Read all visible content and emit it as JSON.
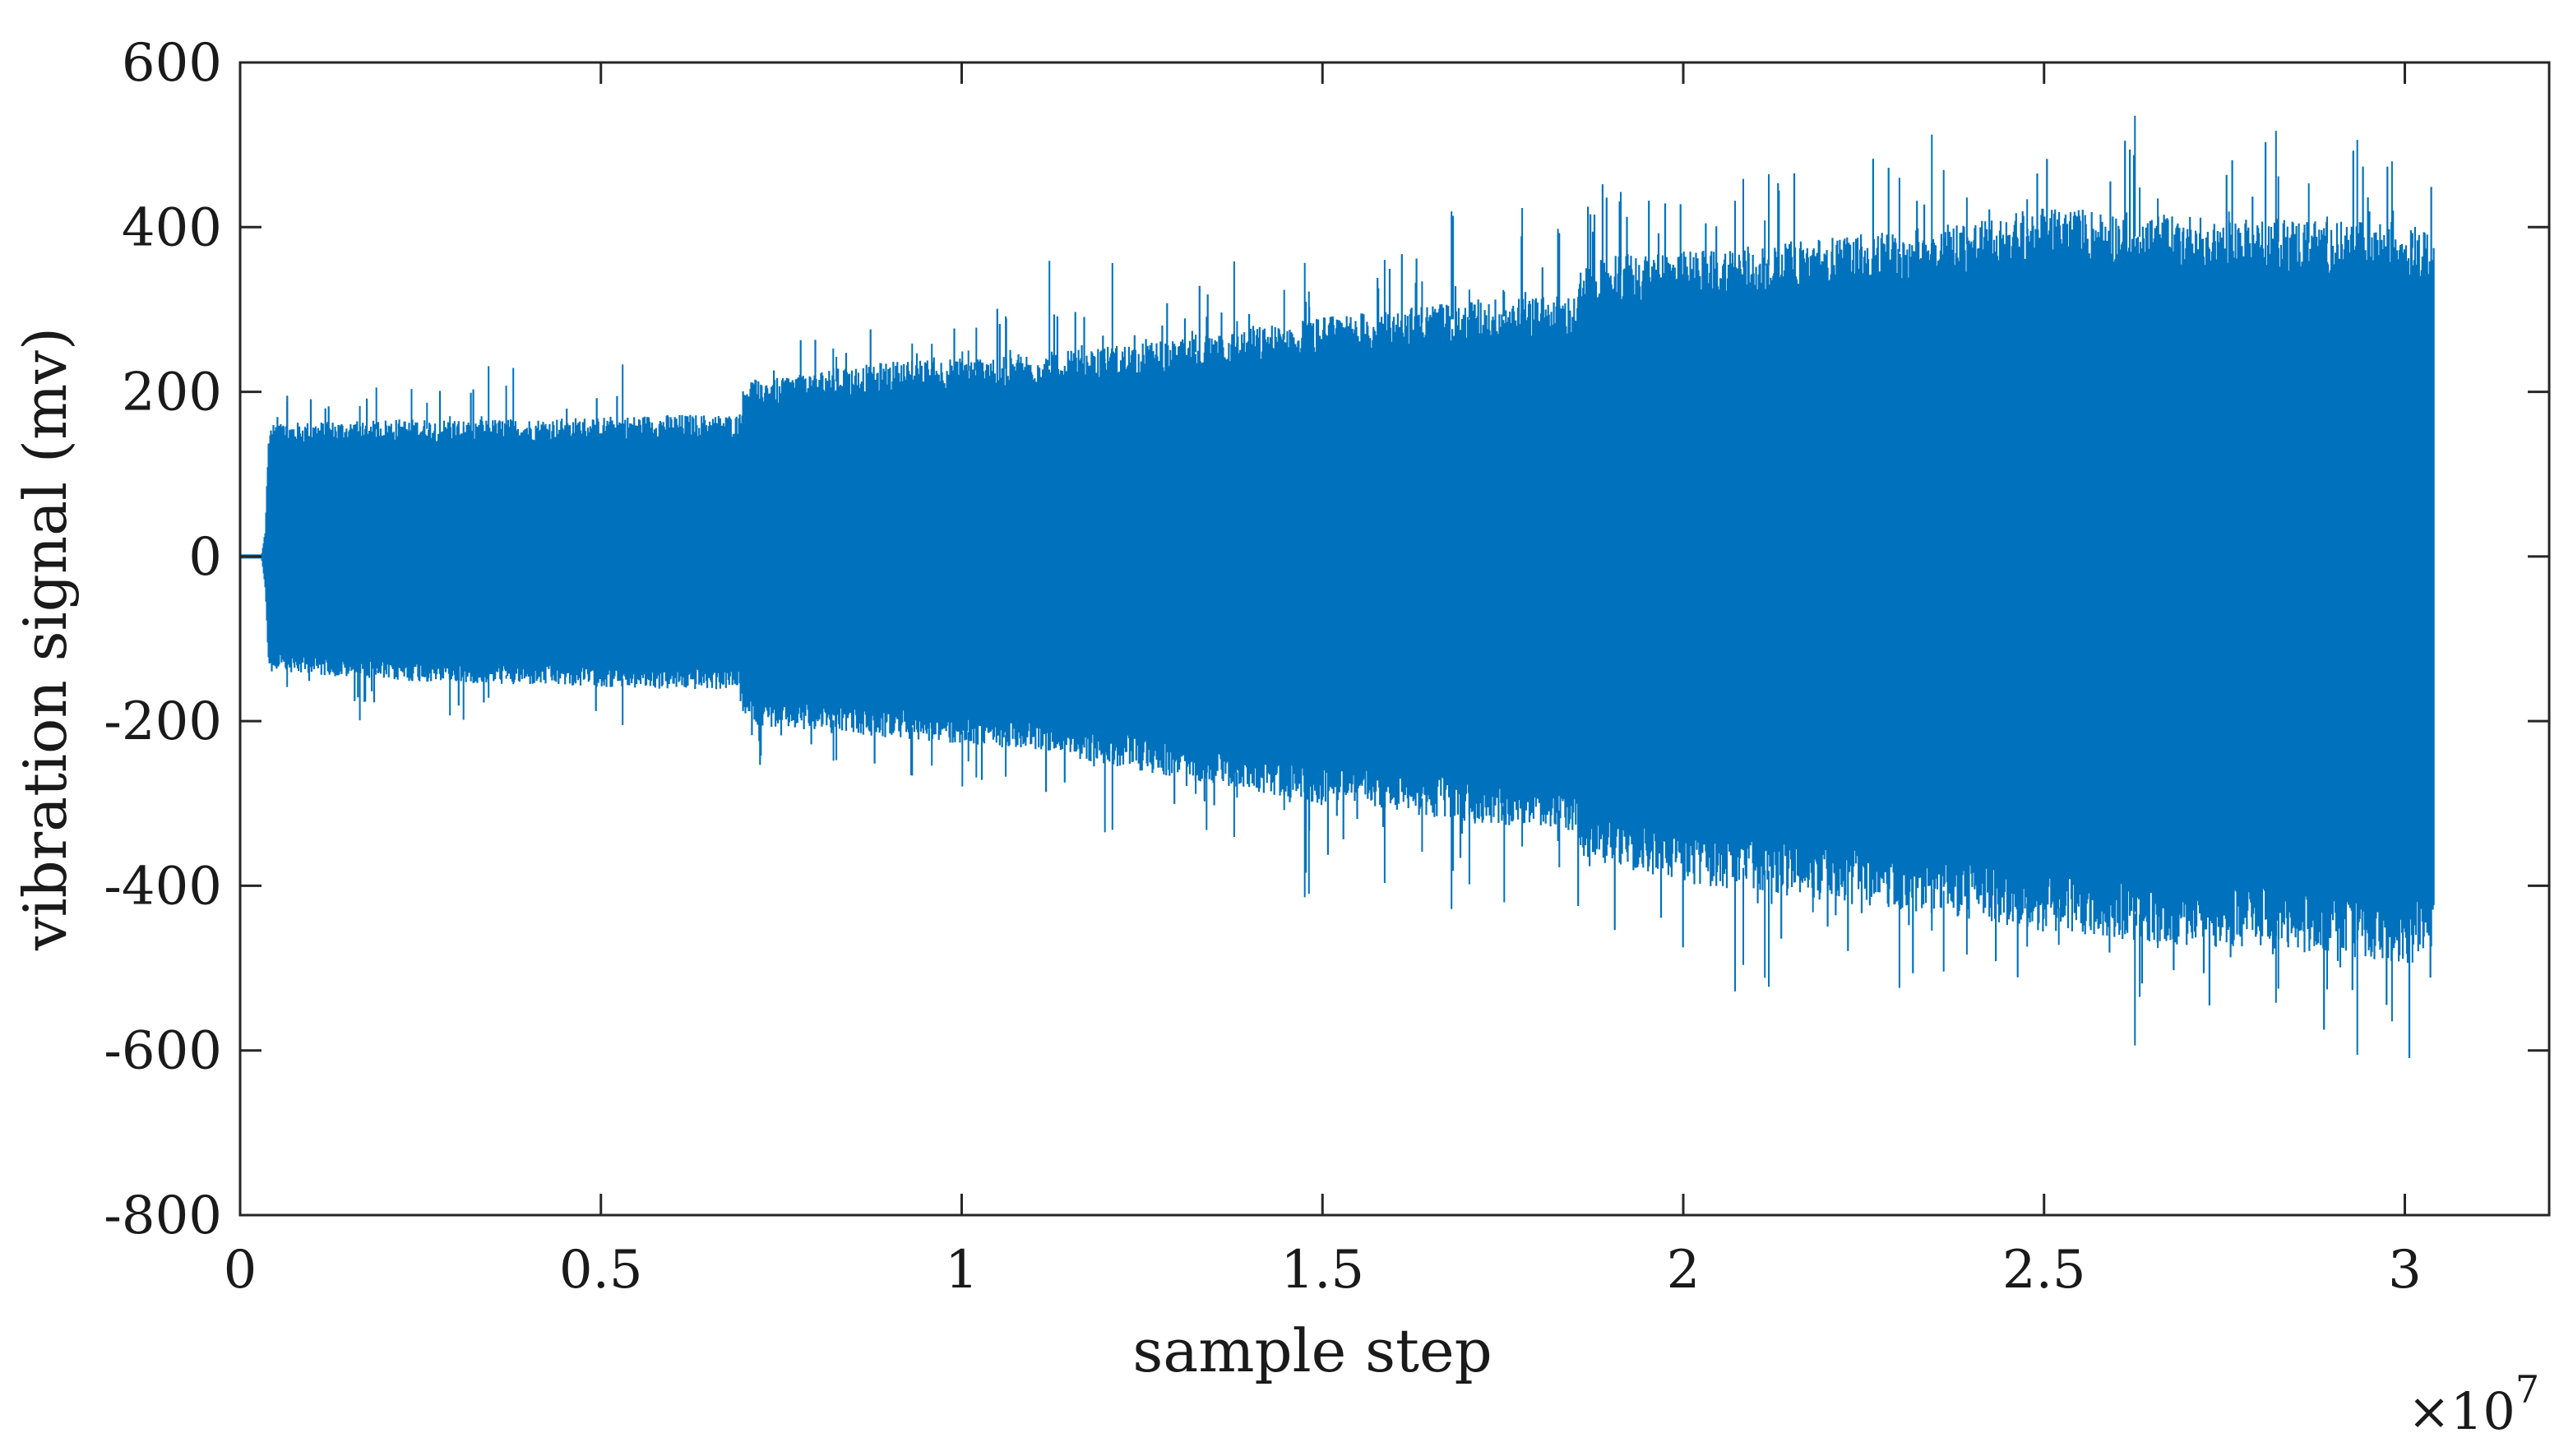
{
  "chart_data": {
    "type": "line",
    "title": "",
    "xlabel": "sample step",
    "ylabel": "vibration signal (mv)",
    "x_multiplier_label": "×10",
    "x_multiplier_exponent": "7",
    "xlim": [
      0,
      3.2
    ],
    "ylim": [
      -800,
      600
    ],
    "x_ticks": [
      0,
      0.5,
      1,
      1.5,
      2,
      2.5,
      3
    ],
    "x_tick_labels": [
      "0",
      "0.5",
      "1",
      "1.5",
      "2",
      "2.5",
      "3"
    ],
    "y_ticks": [
      -800,
      -600,
      -400,
      -200,
      0,
      200,
      400,
      600
    ],
    "y_tick_labels": [
      "-800",
      "-600",
      "-400",
      "-200",
      "0",
      "200",
      "400",
      "600"
    ],
    "grid": false,
    "legend": "none",
    "series": [
      {
        "color": "#0072bd",
        "envelope": {
          "x": [
            0,
            0.03,
            0.035,
            0.04,
            0.2,
            0.4,
            0.6,
            0.69,
            0.7,
            0.9,
            1.1,
            1.3,
            1.5,
            1.7,
            1.85,
            1.86,
            2.0,
            2.2,
            2.4,
            2.5,
            2.7,
            2.9,
            3.0,
            3.04,
            3.045
          ],
          "upper": [
            2,
            2,
            30,
            150,
            155,
            155,
            160,
            160,
            200,
            220,
            230,
            245,
            270,
            290,
            295,
            340,
            345,
            360,
            380,
            395,
            385,
            380,
            380,
            360,
            0
          ],
          "lower": [
            -2,
            -2,
            -40,
            -130,
            -140,
            -145,
            -150,
            -150,
            -190,
            -205,
            -220,
            -250,
            -280,
            -300,
            -310,
            -340,
            -370,
            -390,
            -410,
            -425,
            -440,
            -450,
            -460,
            -460,
            0
          ],
          "spikes_upper": [
            195,
            235,
            260,
            300,
            365,
            430,
            480,
            530,
            545
          ],
          "spikes_lower": [
            -210,
            -280,
            -350,
            -430,
            -490,
            -540,
            -610
          ]
        }
      }
    ]
  }
}
